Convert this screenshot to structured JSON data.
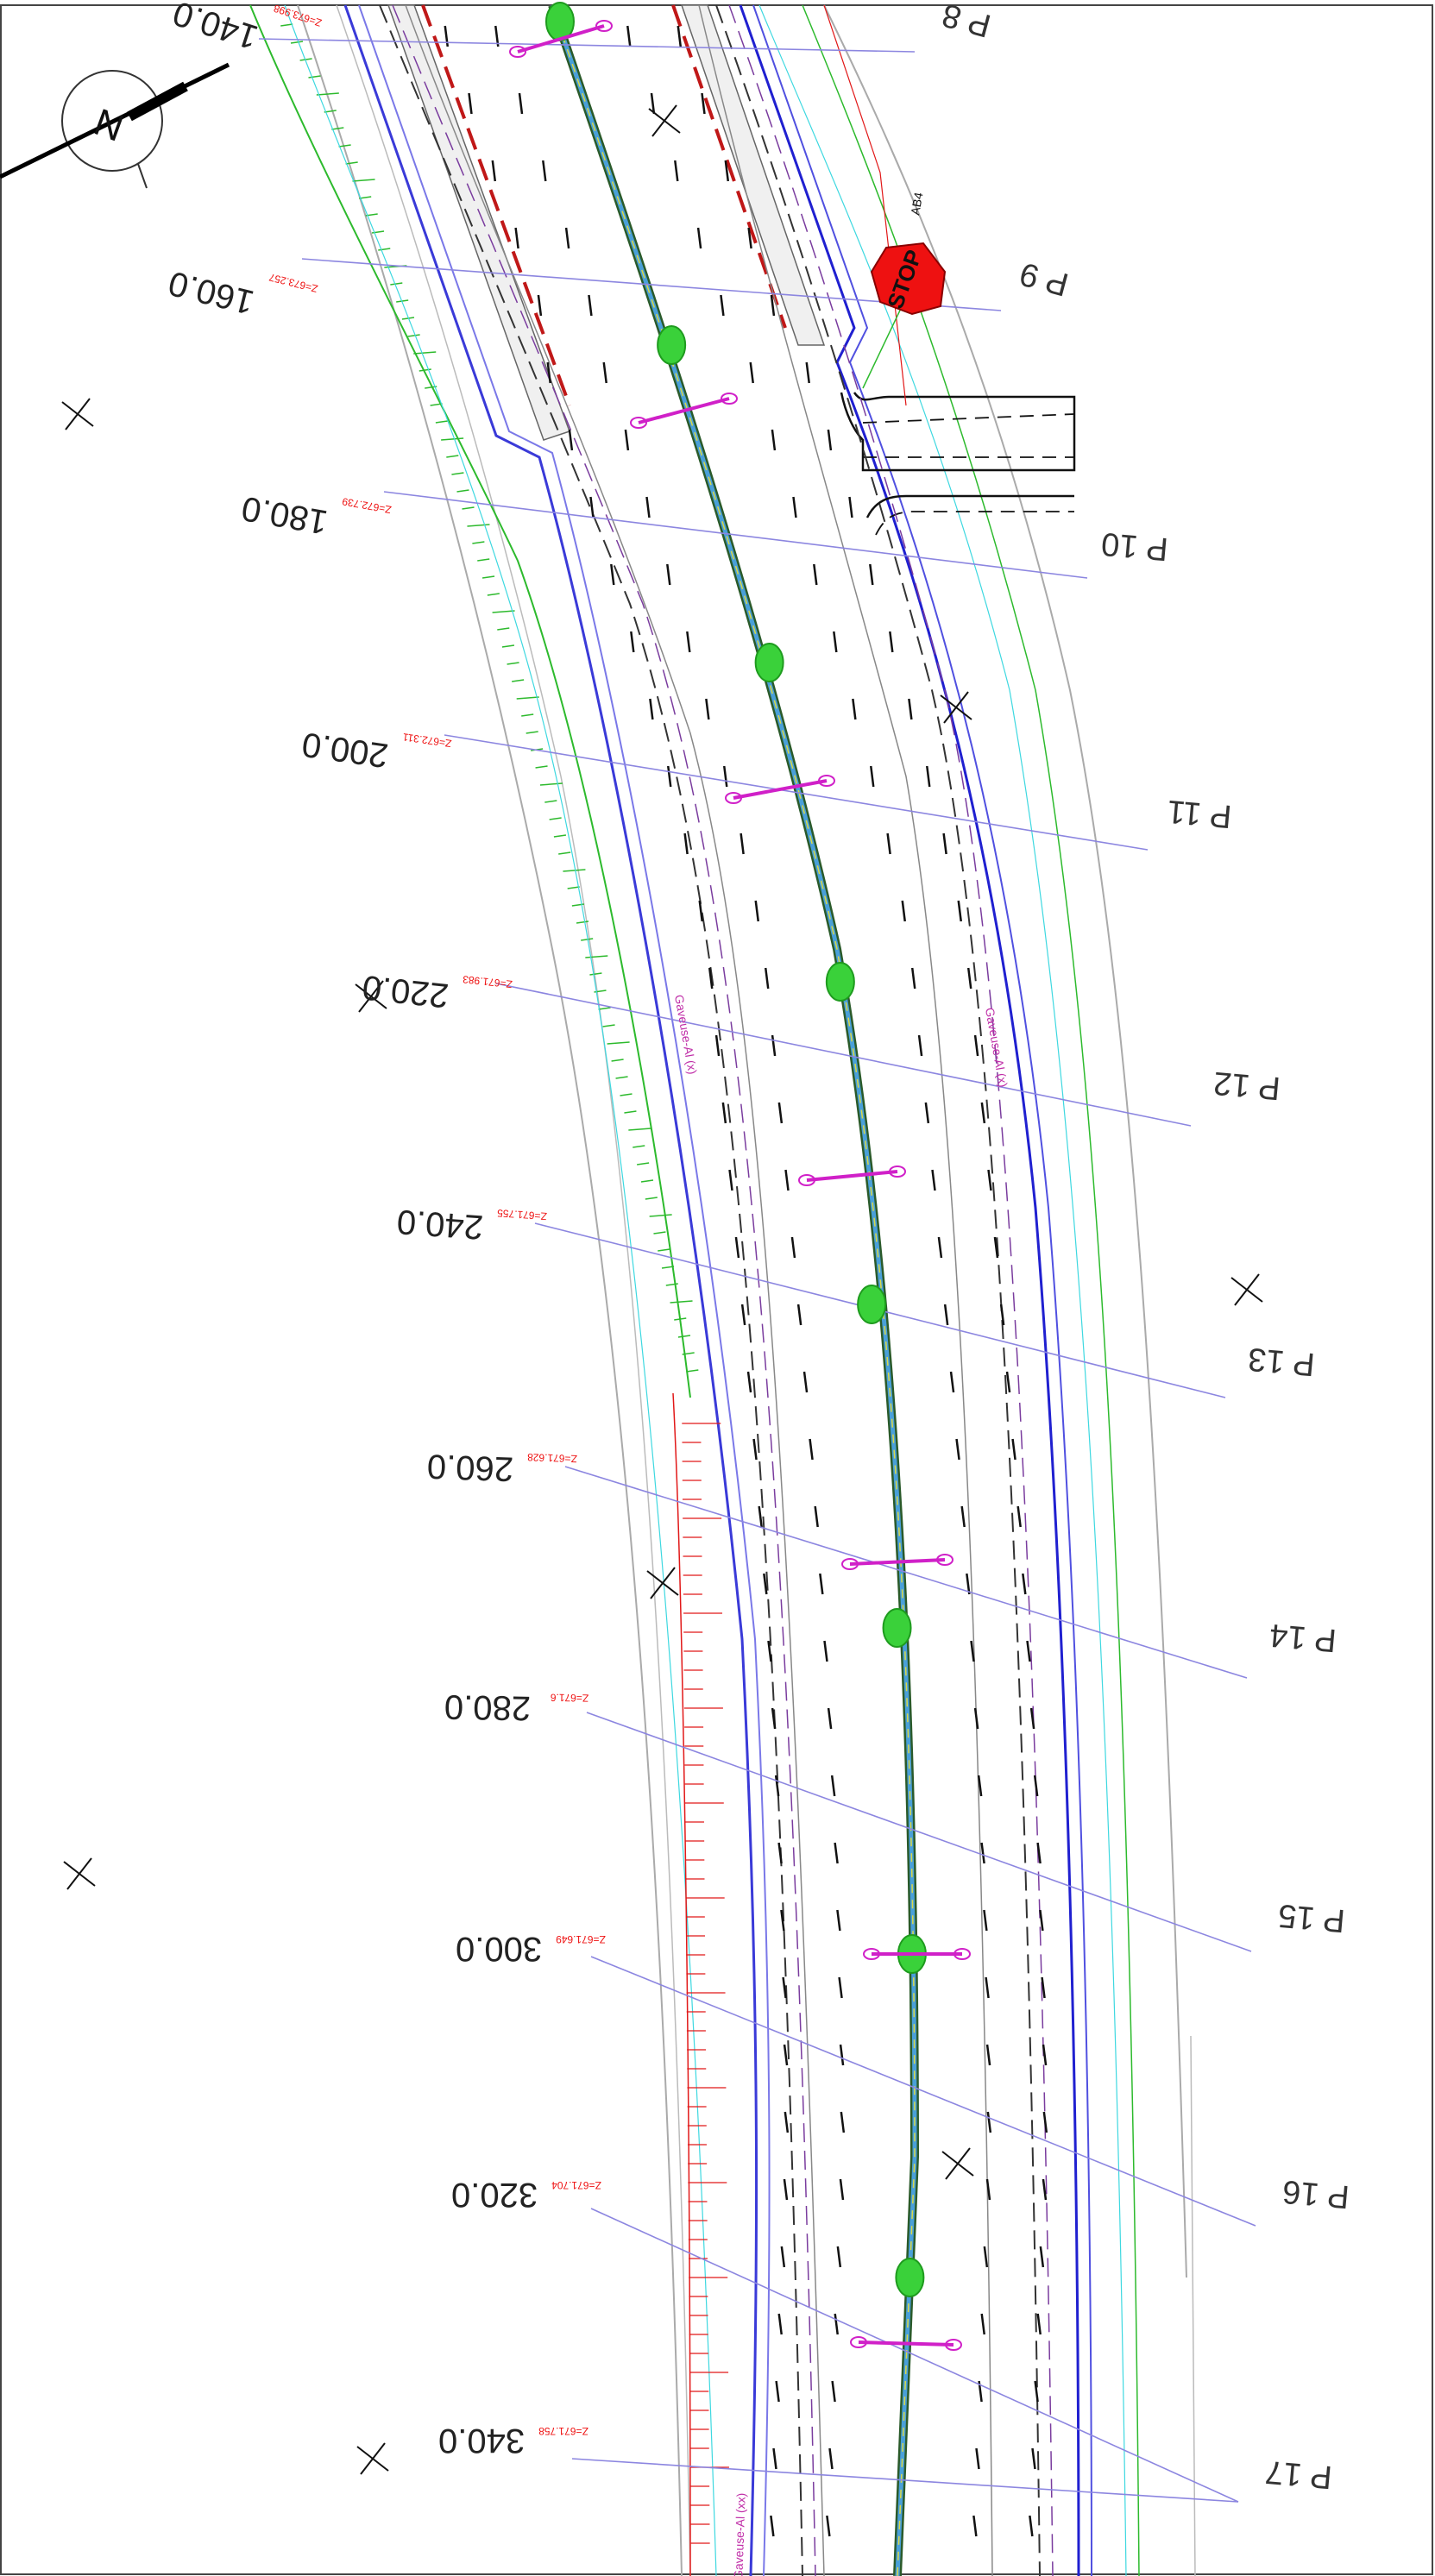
{
  "drawing": {
    "north_label": "N",
    "stop_sign_text": "STOP",
    "stop_sign_code": "AB4",
    "left_lane_label": "Gaveuse-Al (x)",
    "right_lane_label": "Gaveuse-Al (x)",
    "bottom_lane_label": "Gaveuse-Al (xx)"
  },
  "stations": [
    {
      "label": "140.0",
      "elev": "Z=673.998"
    },
    {
      "label": "160.0",
      "elev": "Z=673.257"
    },
    {
      "label": "180.0",
      "elev": "Z=672.739"
    },
    {
      "label": "200.0",
      "elev": "Z=672.311"
    },
    {
      "label": "220.0",
      "elev": "Z=671.983"
    },
    {
      "label": "240.0",
      "elev": "Z=671.755"
    },
    {
      "label": "260.0",
      "elev": "Z=671.628"
    },
    {
      "label": "280.0",
      "elev": "Z=671.6"
    },
    {
      "label": "300.0",
      "elev": "Z=671.649"
    },
    {
      "label": "320.0",
      "elev": "Z=671.704"
    },
    {
      "label": "340.0",
      "elev": "Z=671.758"
    }
  ],
  "profiles": [
    "P 8",
    "P 9",
    "P 10",
    "P 11",
    "P 12",
    "P 13",
    "P 14",
    "P 15",
    "P 16",
    "P 17"
  ],
  "colors": {
    "axis": "#2a5a2a",
    "edge_blue": "#3a3ad8",
    "section_line": "#8c86e0",
    "green_zone": "#2dba2d",
    "magenta": "#d020c8",
    "red": "#e11818",
    "grey": "#999999",
    "dark_dash": "#222222"
  }
}
